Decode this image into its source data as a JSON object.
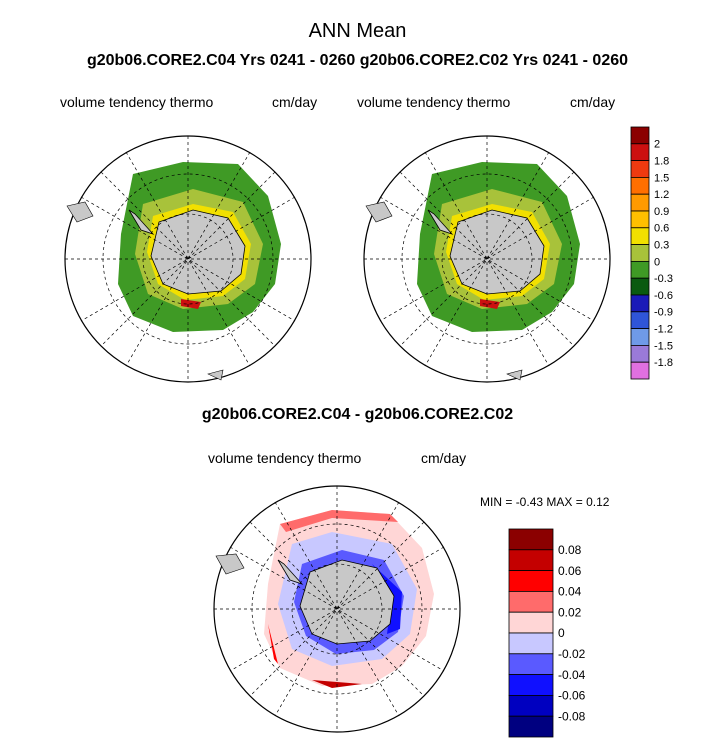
{
  "header": {
    "title": "ANN Mean",
    "subtitle": "g20b06.CORE2.C04  Yrs 0241 - 0260 g20b06.CORE2.C02  Yrs 0241 - 0260"
  },
  "panels": {
    "left": {
      "variable": "volume tendency thermo",
      "units": "cm/day"
    },
    "right": {
      "variable": "volume tendency thermo",
      "units": "cm/day"
    }
  },
  "difference": {
    "title": "g20b06.CORE2.C04 - g20b06.CORE2.C02",
    "variable": "volume tendency thermo",
    "units": "cm/day",
    "min_label": "MIN =",
    "min_value": "-0.43",
    "max_label": "MAX =",
    "max_value": "0.12"
  },
  "colorbar_top": {
    "labels": [
      "2",
      "1.8",
      "1.5",
      "1.2",
      "0.9",
      "0.6",
      "0.3",
      "0",
      "-0.3",
      "-0.6",
      "-0.9",
      "-1.2",
      "-1.5",
      "-1.8"
    ],
    "colors": [
      "#8b0000",
      "#cc1010",
      "#ee3a10",
      "#ff6f00",
      "#ff9a00",
      "#ffbf00",
      "#f2e000",
      "#a8c23a",
      "#3f9a25",
      "#0a5a10",
      "#1a1ab8",
      "#2f55d8",
      "#6f9ae8",
      "#9a7ad8",
      "#e070e0"
    ]
  },
  "colorbar_diff": {
    "labels": [
      "0.08",
      "0.06",
      "0.04",
      "0.02",
      "0",
      "-0.02",
      "-0.04",
      "-0.06",
      "-0.08"
    ],
    "colors": [
      "#8b0000",
      "#c40000",
      "#ff0000",
      "#ff6b6b",
      "#ffd6d6",
      "#c8c8ff",
      "#5a5aff",
      "#1010ff",
      "#0000c0",
      "#000080"
    ]
  },
  "map_colors": {
    "land": "#c8c8c8",
    "ocean": "#ffffff"
  }
}
